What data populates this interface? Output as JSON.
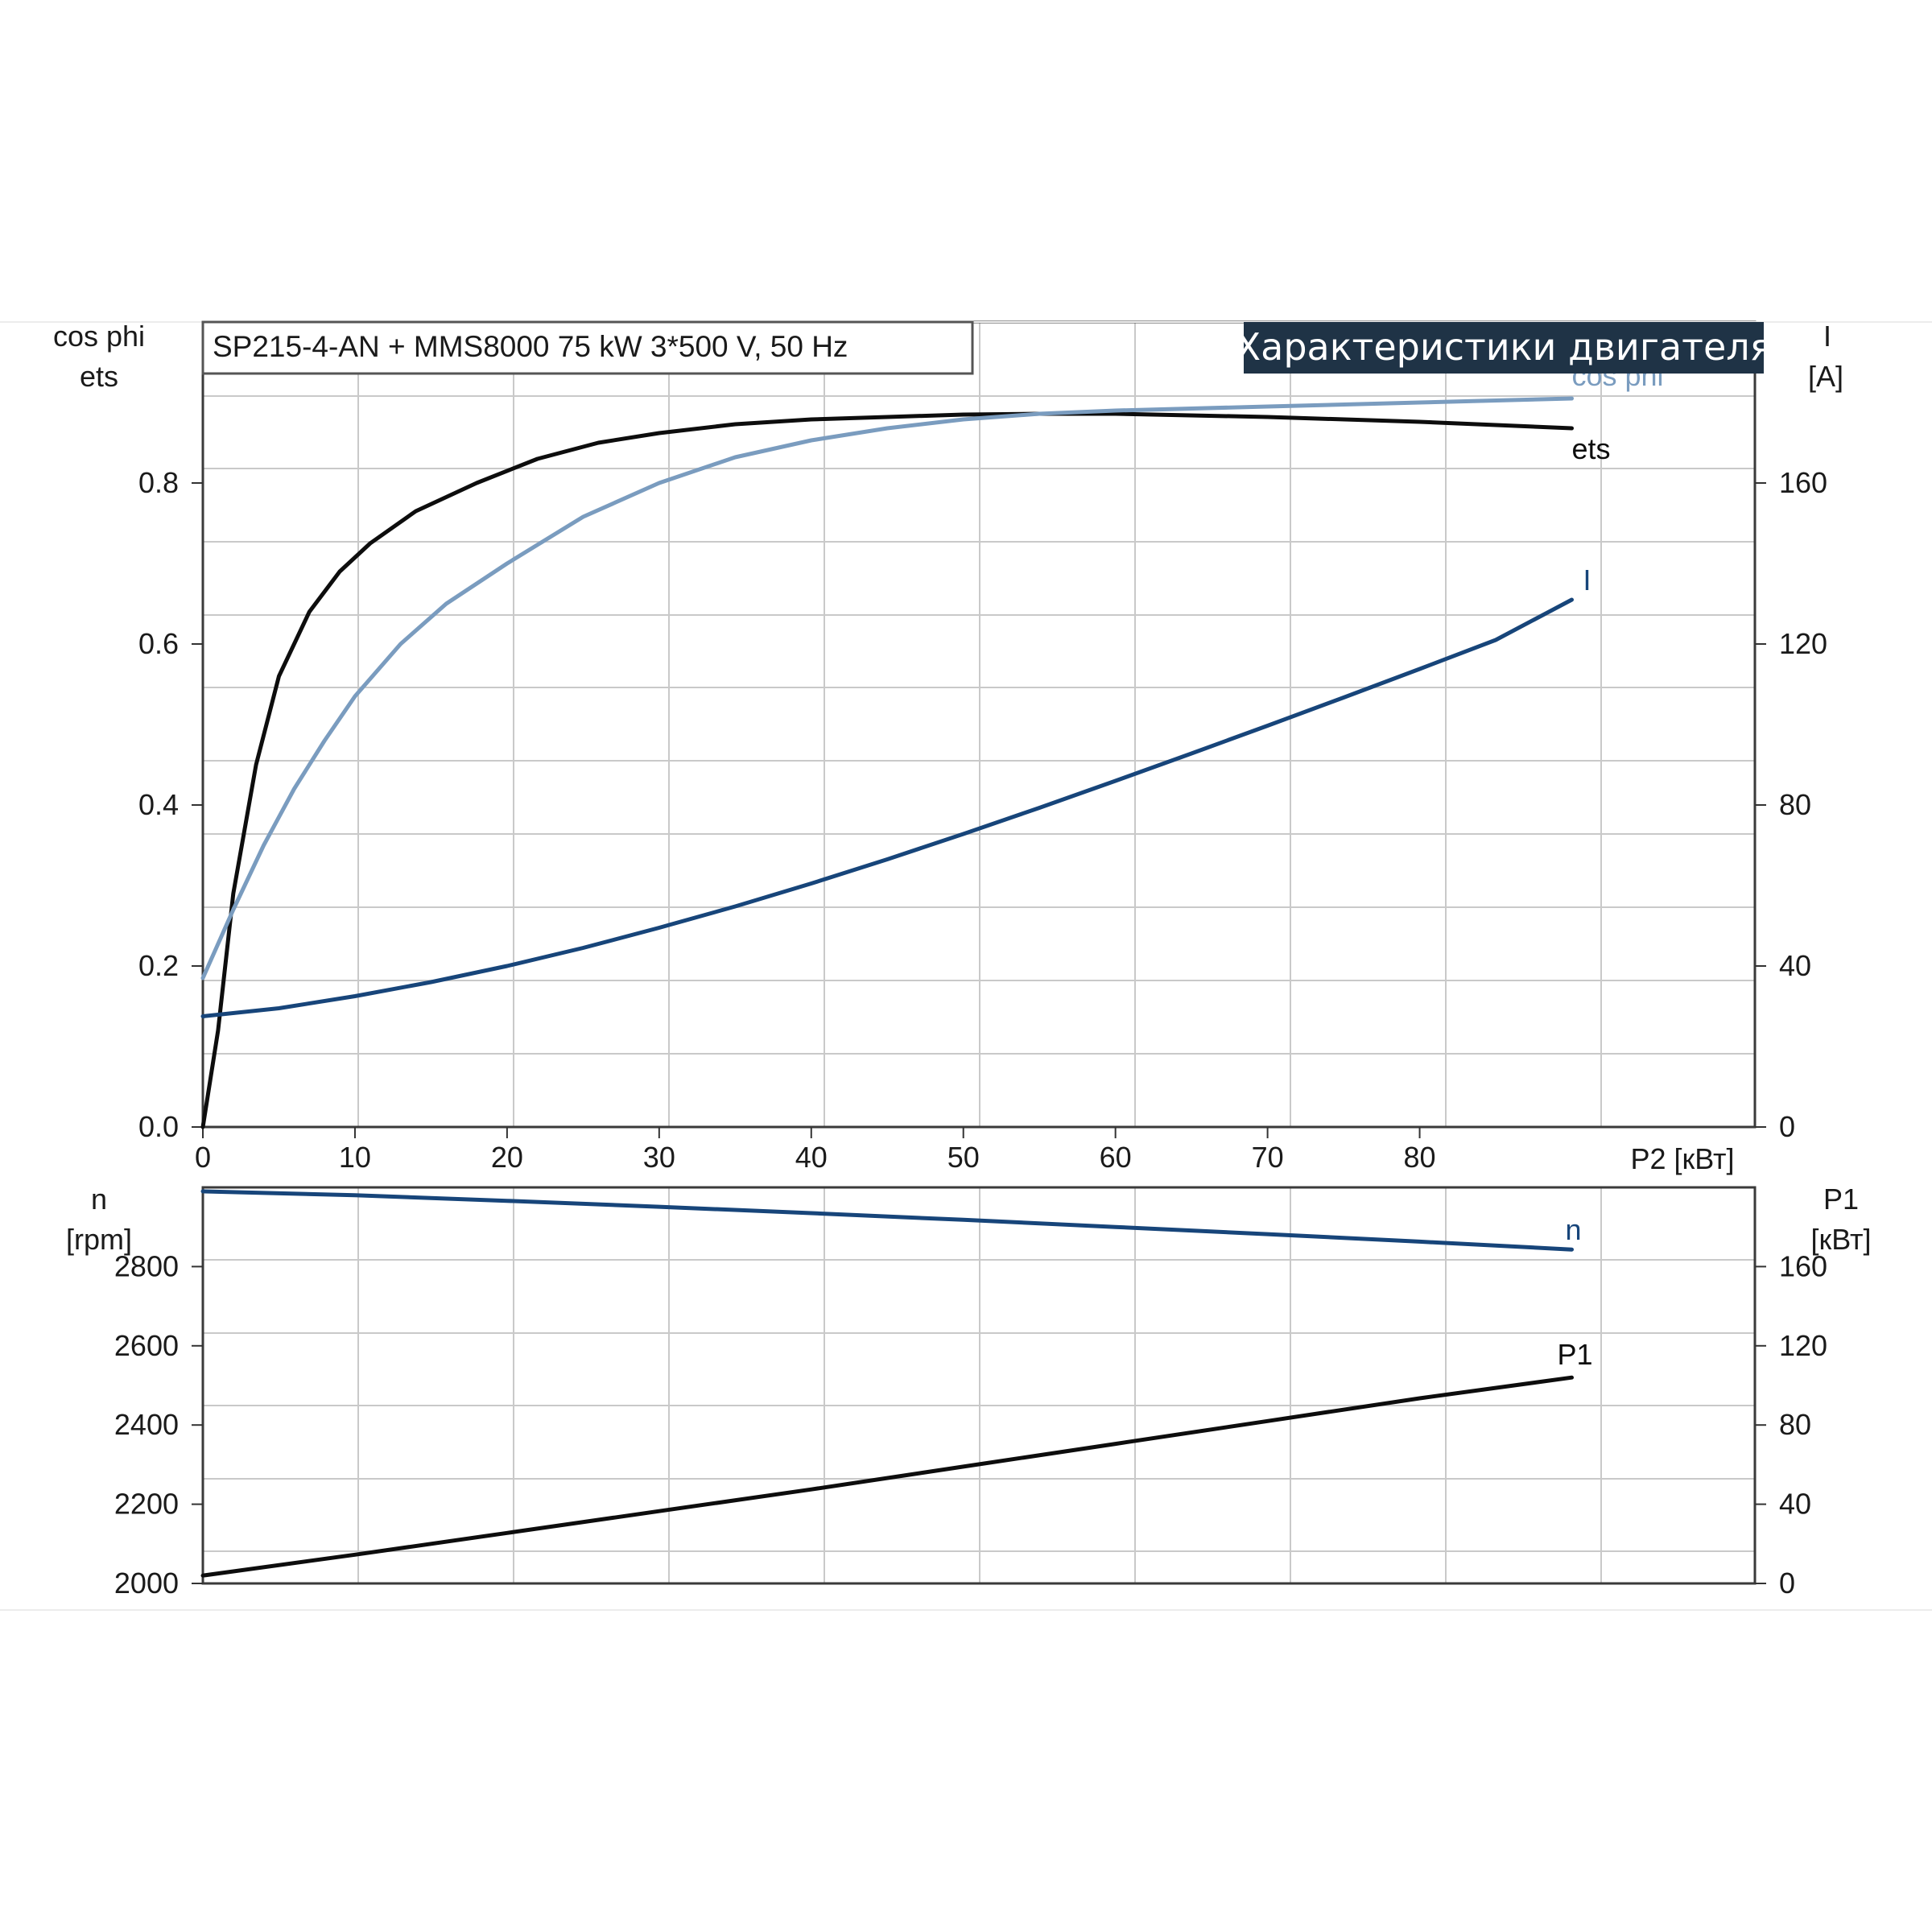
{
  "chart_data": [
    {
      "type": "line",
      "header": "SP215-4-AN + MMS8000   75 kW   3*500 V, 50 Hz",
      "banner": "Характеристики двигателя",
      "colors": {
        "eta": "#0d0d0d",
        "cosphi": "#7a9cbf",
        "current": "#17457a"
      },
      "xlabel": "P2 [кВт]",
      "xlim": [
        0,
        100
      ],
      "x_ticks": [
        "0",
        "10",
        "20",
        "30",
        "40",
        "50",
        "60",
        "70",
        "80"
      ],
      "y_left_label": [
        "cos phi",
        "ets"
      ],
      "y_left_lim": [
        0,
        1.0
      ],
      "y_left_ticks": [
        "0.0",
        "0.2",
        "0.4",
        "0.6",
        "0.8"
      ],
      "y_right_label": [
        "I",
        "[A]"
      ],
      "y_right_lim": [
        0,
        200
      ],
      "y_right_ticks": [
        "0",
        "40",
        "80",
        "120",
        "160"
      ],
      "grid": true,
      "series": [
        {
          "name": "ets",
          "axis": "left",
          "color_key": "eta",
          "x": [
            0,
            1,
            2,
            3.5,
            5,
            7,
            9,
            11,
            14,
            18,
            22,
            26,
            30,
            35,
            40,
            45,
            50,
            55,
            60,
            70,
            80,
            90
          ],
          "y": [
            0.0,
            0.12,
            0.29,
            0.45,
            0.56,
            0.64,
            0.69,
            0.725,
            0.765,
            0.8,
            0.83,
            0.85,
            0.862,
            0.873,
            0.879,
            0.882,
            0.885,
            0.886,
            0.886,
            0.882,
            0.876,
            0.868
          ]
        },
        {
          "name": "cos phi",
          "axis": "left",
          "color_key": "cosphi",
          "x": [
            0,
            2,
            4,
            6,
            8,
            10,
            13,
            16,
            20,
            25,
            30,
            35,
            40,
            45,
            50,
            55,
            60,
            70,
            80,
            90
          ],
          "y": [
            0.185,
            0.27,
            0.35,
            0.42,
            0.48,
            0.535,
            0.6,
            0.65,
            0.7,
            0.758,
            0.8,
            0.832,
            0.853,
            0.868,
            0.879,
            0.886,
            0.89,
            0.895,
            0.9,
            0.905
          ]
        },
        {
          "name": "I",
          "axis": "right",
          "color_key": "current",
          "x": [
            0,
            5,
            10,
            15,
            20,
            25,
            30,
            35,
            40,
            45,
            50,
            55,
            60,
            65,
            70,
            75,
            80,
            85,
            90
          ],
          "y": [
            27.5,
            29.5,
            32.5,
            36,
            40,
            44.5,
            49.5,
            54.8,
            60.5,
            66.5,
            72.8,
            79.3,
            86,
            92.8,
            99.7,
            106.7,
            113.8,
            121,
            131
          ]
        }
      ]
    },
    {
      "type": "line",
      "xlim": [
        0,
        100
      ],
      "y_left_label": [
        "n",
        "[rpm]"
      ],
      "y_left_lim": [
        2000,
        3000
      ],
      "y_left_ticks": [
        "2000",
        "2200",
        "2400",
        "2600",
        "2800"
      ],
      "y_right_label": [
        "P1",
        "[кВт]"
      ],
      "y_right_lim": [
        0,
        200
      ],
      "y_right_ticks": [
        "0",
        "40",
        "80",
        "120",
        "160"
      ],
      "grid": true,
      "series": [
        {
          "name": "n",
          "axis": "left",
          "color_key": "current",
          "x": [
            0,
            10,
            20,
            30,
            40,
            50,
            60,
            70,
            80,
            90
          ],
          "y": [
            2990,
            2980,
            2966,
            2951,
            2935,
            2918,
            2900,
            2882,
            2863,
            2843
          ]
        },
        {
          "name": "P1",
          "axis": "right",
          "color_key": "eta",
          "x": [
            0,
            10,
            20,
            30,
            40,
            50,
            60,
            70,
            80,
            90
          ],
          "y": [
            4,
            14.5,
            25.5,
            36.5,
            47.5,
            59,
            70.5,
            82,
            93.5,
            104
          ]
        }
      ]
    }
  ]
}
